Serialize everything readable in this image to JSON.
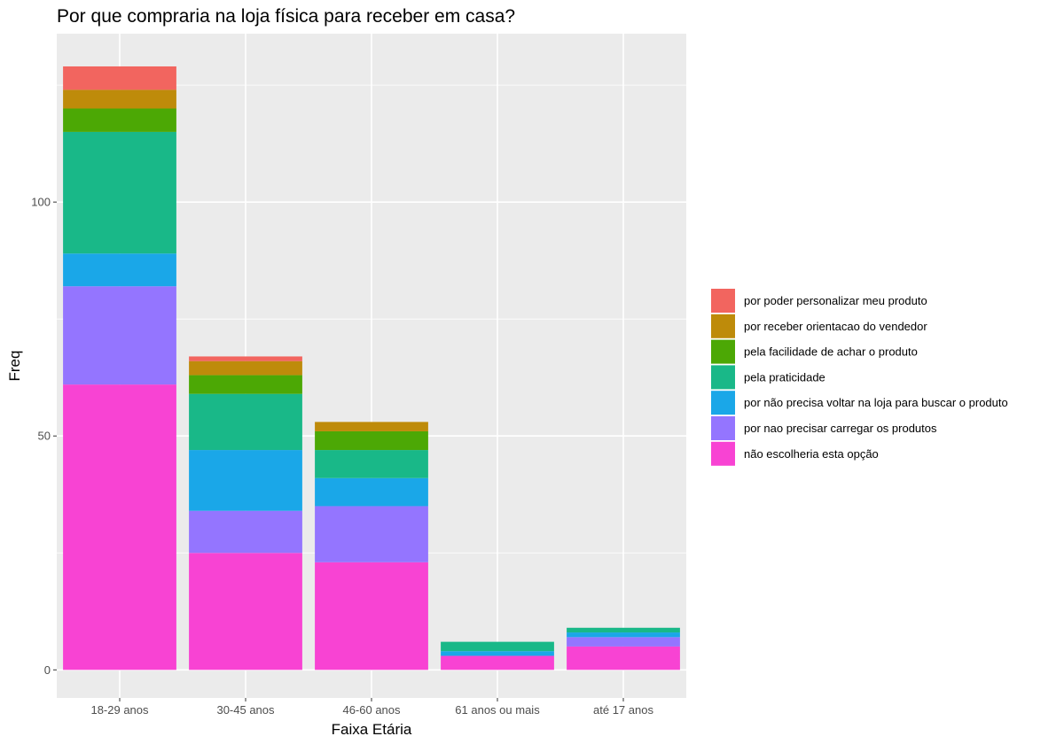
{
  "chart_data": {
    "type": "bar",
    "stacked": true,
    "title": "Por que compraria na loja física para receber em casa?",
    "xlabel": "Faixa Etária",
    "ylabel": "Freq",
    "categories": [
      "18-29 anos",
      "30-45 anos",
      "46-60 anos",
      "61 anos ou mais",
      "até 17 anos"
    ],
    "ylim": [
      -6,
      136
    ],
    "yticks": [
      0,
      50,
      100
    ],
    "grid": true,
    "legend_position": "right",
    "series": [
      {
        "name": "não escolheria esta opção",
        "color": "#F843D3",
        "values": [
          61,
          25,
          23,
          3,
          5
        ]
      },
      {
        "name": "por nao precisar carregar os produtos",
        "color": "#9475FF",
        "values": [
          21,
          9,
          12,
          0,
          2
        ]
      },
      {
        "name": "por não precisa voltar na loja para buscar o produto",
        "color": "#1AA7E8",
        "values": [
          7,
          13,
          6,
          1,
          1
        ]
      },
      {
        "name": "pela praticidade",
        "color": "#19B888",
        "values": [
          26,
          12,
          6,
          2,
          1
        ]
      },
      {
        "name": "pela facilidade de achar o produto",
        "color": "#4CA805",
        "values": [
          5,
          4,
          4,
          0,
          0
        ]
      },
      {
        "name": "por receber orientacao do vendedor",
        "color": "#BE8B0A",
        "values": [
          4,
          3,
          2,
          0,
          0
        ]
      },
      {
        "name": "por poder personalizar meu produto",
        "color": "#F2655F",
        "values": [
          5,
          1,
          0,
          0,
          0
        ]
      }
    ]
  }
}
